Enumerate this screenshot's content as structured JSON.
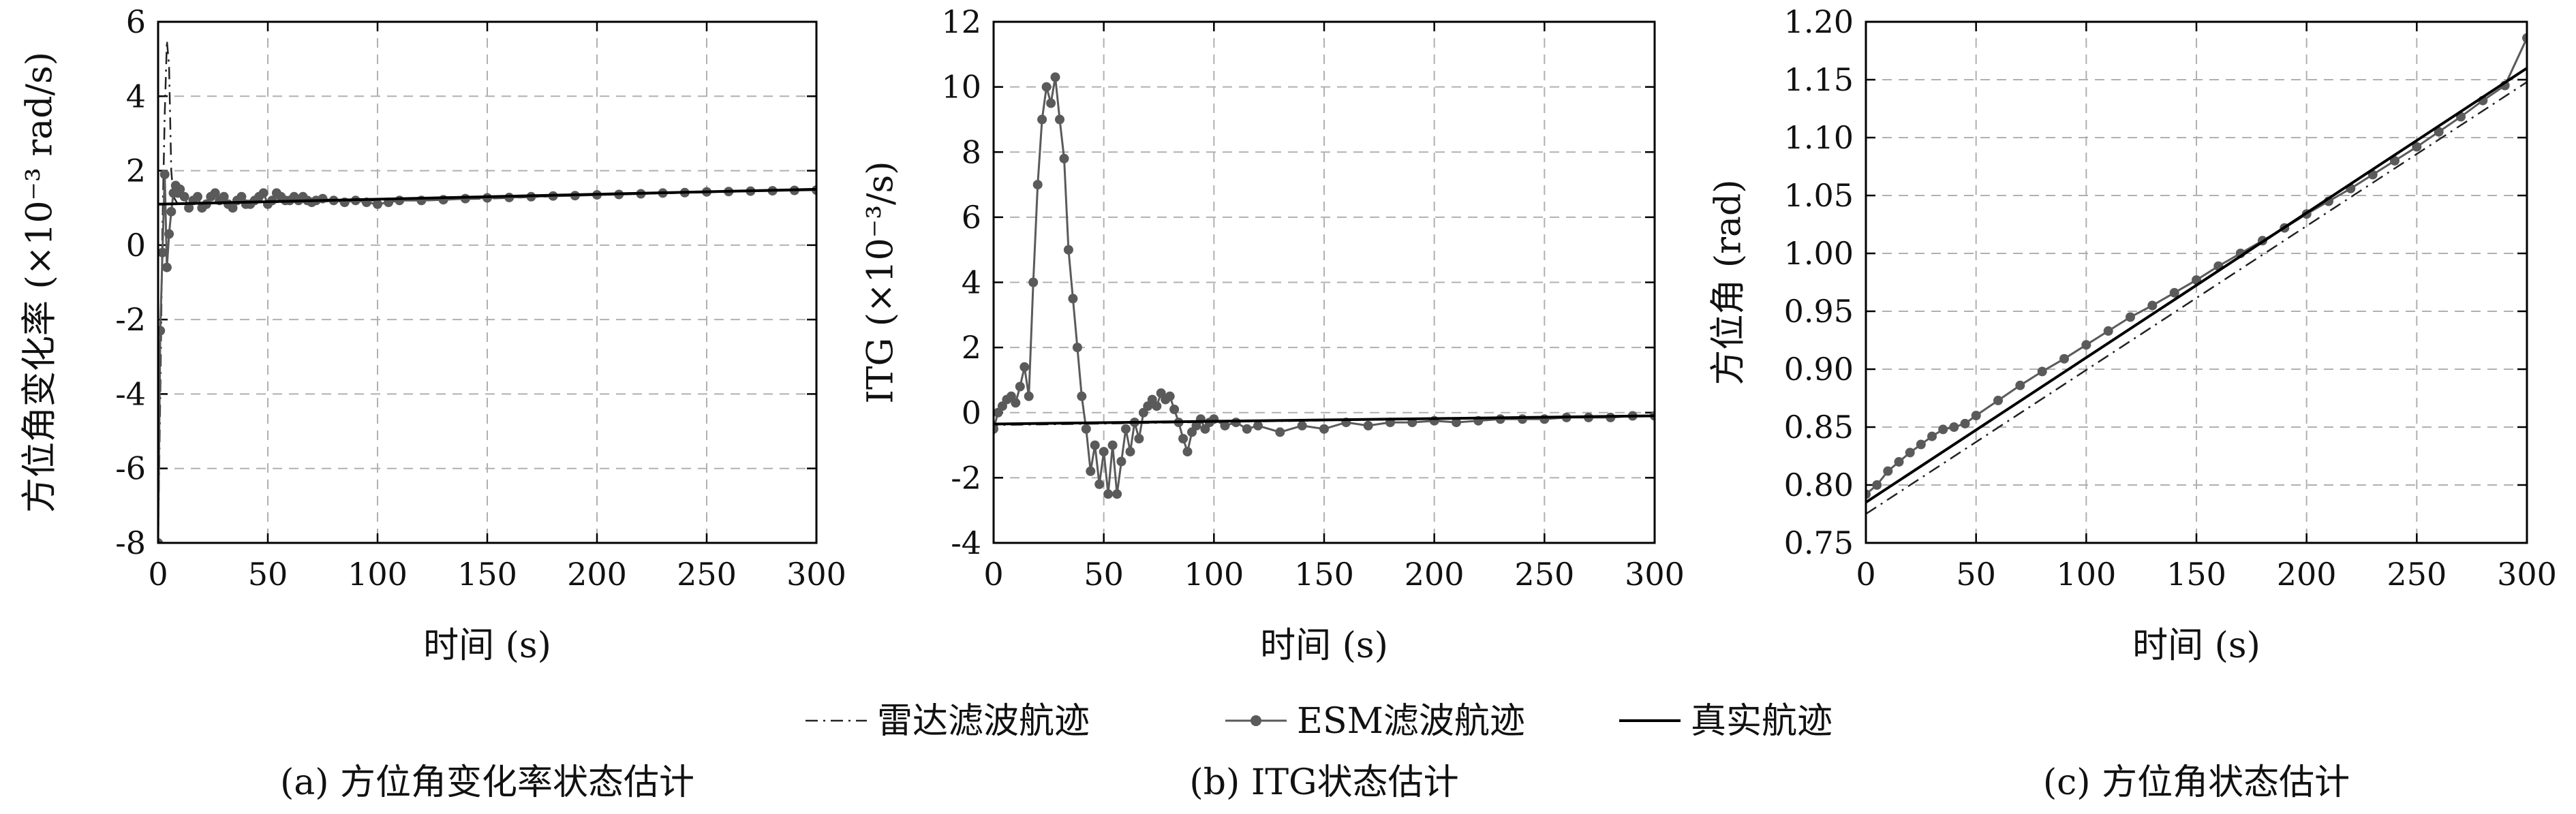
{
  "legend": [
    {
      "label": "雷达滤波航迹",
      "style": "dashdot"
    },
    {
      "label": "ESM滤波航迹",
      "style": "marker"
    },
    {
      "label": "真实航迹",
      "style": "solid"
    }
  ],
  "colors": {
    "radar": "#222222",
    "esm": "#5a5a5a",
    "truth": "#000000",
    "grid": "#b0b0b0"
  },
  "chart_data": [
    {
      "id": "a",
      "type": "line",
      "caption": "(a) 方位角变化率状态估计",
      "xlabel": "时间 (s)",
      "ylabel": "方位角变化率 (×10⁻³ rad/s)",
      "xlim": [
        0,
        300
      ],
      "ylim": [
        -8,
        6
      ],
      "xticks": [
        0,
        50,
        100,
        150,
        200,
        250,
        300
      ],
      "yticks": [
        -8,
        -6,
        -4,
        -2,
        0,
        2,
        4,
        6
      ],
      "grid": true,
      "series": [
        {
          "key": "radar",
          "style": "dashdot",
          "x": [
            0,
            1,
            2,
            3,
            4,
            5,
            6,
            7,
            9,
            12,
            20,
            50,
            100,
            150,
            200,
            250,
            300
          ],
          "y": [
            -8,
            -4,
            0.5,
            3.5,
            5.5,
            4.8,
            2.0,
            1.3,
            1.1,
            1.1,
            1.12,
            1.15,
            1.2,
            1.25,
            1.35,
            1.42,
            1.5
          ]
        },
        {
          "key": "esm",
          "style": "marker",
          "x": [
            0,
            1,
            2,
            3,
            4,
            5,
            6,
            7,
            8,
            9,
            10,
            12,
            14,
            16,
            18,
            20,
            22,
            24,
            26,
            28,
            30,
            32,
            34,
            36,
            38,
            40,
            42,
            44,
            46,
            48,
            50,
            52,
            54,
            56,
            58,
            60,
            62,
            64,
            66,
            68,
            70,
            72,
            75,
            80,
            85,
            90,
            95,
            100,
            105,
            110,
            120,
            130,
            140,
            150,
            160,
            170,
            180,
            190,
            200,
            210,
            220,
            230,
            240,
            250,
            260,
            270,
            280,
            290,
            300
          ],
          "y": [
            -8,
            -2.3,
            -0.2,
            1.9,
            -0.6,
            0.3,
            0.9,
            1.4,
            1.6,
            1.4,
            1.5,
            1.3,
            1.0,
            1.2,
            1.3,
            1.0,
            1.1,
            1.3,
            1.4,
            1.2,
            1.3,
            1.1,
            1.0,
            1.2,
            1.3,
            1.1,
            1.1,
            1.2,
            1.3,
            1.4,
            1.1,
            1.2,
            1.4,
            1.3,
            1.2,
            1.2,
            1.3,
            1.2,
            1.3,
            1.2,
            1.15,
            1.2,
            1.25,
            1.2,
            1.15,
            1.2,
            1.15,
            1.1,
            1.15,
            1.2,
            1.2,
            1.22,
            1.25,
            1.27,
            1.28,
            1.3,
            1.32,
            1.33,
            1.35,
            1.36,
            1.38,
            1.4,
            1.41,
            1.43,
            1.44,
            1.45,
            1.46,
            1.47,
            1.48
          ]
        },
        {
          "key": "truth",
          "style": "solid",
          "x": [
            0,
            300
          ],
          "y": [
            1.1,
            1.5
          ]
        }
      ]
    },
    {
      "id": "b",
      "type": "line",
      "caption": "(b) ITG状态估计",
      "xlabel": "时间 (s)",
      "ylabel": "ITG (×10⁻³/s)",
      "xlim": [
        0,
        300
      ],
      "ylim": [
        -4,
        12
      ],
      "xticks": [
        0,
        50,
        100,
        150,
        200,
        250,
        300
      ],
      "yticks": [
        -4,
        -2,
        0,
        2,
        4,
        6,
        8,
        10,
        12
      ],
      "grid": true,
      "series": [
        {
          "key": "radar",
          "style": "dashdot",
          "x": [
            0,
            1,
            2,
            300
          ],
          "y": [
            -0.7,
            -0.4,
            -0.38,
            -0.1
          ]
        },
        {
          "key": "esm",
          "style": "marker",
          "x": [
            0,
            2,
            4,
            6,
            8,
            10,
            12,
            14,
            16,
            18,
            20,
            22,
            24,
            26,
            28,
            30,
            32,
            34,
            36,
            38,
            40,
            42,
            44,
            46,
            48,
            50,
            52,
            54,
            56,
            58,
            60,
            62,
            64,
            66,
            68,
            70,
            72,
            74,
            76,
            78,
            80,
            82,
            84,
            86,
            88,
            90,
            92,
            94,
            96,
            98,
            100,
            105,
            110,
            115,
            120,
            130,
            140,
            150,
            160,
            170,
            180,
            190,
            200,
            210,
            220,
            230,
            240,
            250,
            260,
            270,
            280,
            290,
            300
          ],
          "y": [
            -0.5,
            0.0,
            0.2,
            0.4,
            0.5,
            0.3,
            0.8,
            1.4,
            0.5,
            4.0,
            7.0,
            9.0,
            10.0,
            9.5,
            10.3,
            9.0,
            7.8,
            5.0,
            3.5,
            2.0,
            0.5,
            -0.5,
            -1.8,
            -1.0,
            -2.2,
            -1.2,
            -2.5,
            -1.0,
            -2.5,
            -1.5,
            -0.5,
            -1.2,
            -0.3,
            -0.8,
            0.0,
            0.2,
            0.4,
            0.2,
            0.6,
            0.4,
            0.5,
            0.1,
            -0.3,
            -0.8,
            -1.2,
            -0.6,
            -0.4,
            -0.2,
            -0.5,
            -0.3,
            -0.2,
            -0.4,
            -0.3,
            -0.5,
            -0.4,
            -0.6,
            -0.4,
            -0.5,
            -0.3,
            -0.4,
            -0.3,
            -0.3,
            -0.25,
            -0.3,
            -0.25,
            -0.2,
            -0.2,
            -0.2,
            -0.15,
            -0.15,
            -0.15,
            -0.1,
            -0.1
          ]
        },
        {
          "key": "truth",
          "style": "solid",
          "x": [
            0,
            300
          ],
          "y": [
            -0.35,
            -0.1
          ]
        }
      ]
    },
    {
      "id": "c",
      "type": "line",
      "caption": "(c) 方位角状态估计",
      "xlabel": "时间 (s)",
      "ylabel": "方位角 (rad)",
      "xlim": [
        0,
        300
      ],
      "ylim": [
        0.75,
        1.2
      ],
      "xticks": [
        0,
        50,
        100,
        150,
        200,
        250,
        300
      ],
      "yticks": [
        0.75,
        0.8,
        0.85,
        0.9,
        0.95,
        1.0,
        1.05,
        1.1,
        1.15,
        1.2
      ],
      "ytick_labels": [
        "0.75",
        "0.80",
        "0.85",
        "0.90",
        "0.95",
        "1.00",
        "1.05",
        "1.10",
        "1.15",
        "1.20"
      ],
      "grid": true,
      "series": [
        {
          "key": "radar",
          "style": "dashdot",
          "x": [
            0,
            300
          ],
          "y": [
            0.775,
            1.148
          ]
        },
        {
          "key": "esm",
          "style": "marker",
          "x": [
            0,
            5,
            10,
            15,
            20,
            25,
            30,
            35,
            40,
            45,
            50,
            60,
            70,
            80,
            90,
            100,
            110,
            120,
            130,
            140,
            150,
            160,
            170,
            180,
            190,
            200,
            210,
            220,
            230,
            240,
            250,
            260,
            270,
            280,
            290,
            300
          ],
          "y": [
            0.792,
            0.8,
            0.812,
            0.82,
            0.828,
            0.835,
            0.842,
            0.848,
            0.85,
            0.853,
            0.86,
            0.873,
            0.886,
            0.898,
            0.909,
            0.921,
            0.933,
            0.945,
            0.955,
            0.966,
            0.977,
            0.989,
            1.0,
            1.011,
            1.022,
            1.034,
            1.045,
            1.056,
            1.068,
            1.08,
            1.092,
            1.105,
            1.118,
            1.132,
            1.145,
            1.186
          ]
        },
        {
          "key": "truth",
          "style": "solid",
          "x": [
            0,
            300
          ],
          "y": [
            0.785,
            1.16
          ]
        }
      ]
    }
  ]
}
